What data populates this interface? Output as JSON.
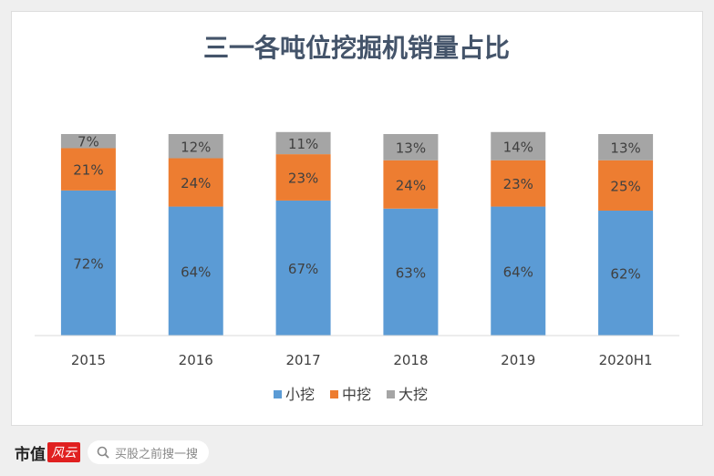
{
  "chart_data": {
    "type": "bar",
    "stacked": true,
    "title": "三一各吨位挖掘机销量占比",
    "categories": [
      "2015",
      "2016",
      "2017",
      "2018",
      "2019",
      "2020H1"
    ],
    "series": [
      {
        "name": "小挖",
        "color": "#5b9bd5",
        "values": [
          72,
          64,
          67,
          63,
          64,
          62
        ]
      },
      {
        "name": "中挖",
        "color": "#ed7d31",
        "values": [
          21,
          24,
          23,
          24,
          23,
          25
        ]
      },
      {
        "name": "大挖",
        "color": "#a5a5a5",
        "values": [
          7,
          12,
          11,
          13,
          14,
          13
        ]
      }
    ],
    "ylim": [
      0,
      100
    ],
    "legend": "bottom",
    "value_suffix": "%"
  },
  "footer": {
    "brand": "市值",
    "logo": "风云",
    "search_placeholder": "买股之前搜一搜"
  },
  "watermark": "市值风云"
}
